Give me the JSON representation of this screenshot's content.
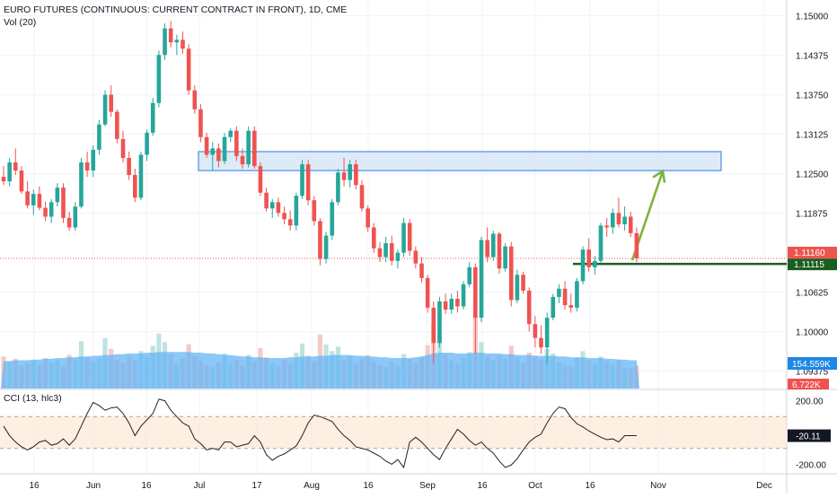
{
  "header": {
    "symbol": "EURO FUTURES (CONTINUOUS: CURRENT CONTRACT IN FRONT), 1D, CME",
    "volume_label": "Vol (20)"
  },
  "colors": {
    "up": "#26a69a",
    "down": "#ef5350",
    "volume_up": "#bfe3e0",
    "volume_down": "#f7c8c8",
    "volume_ma": "#64b5f6",
    "zone_fill": "#d4e6f8",
    "zone_stroke": "#4a90d9",
    "support_line": "#1b5e20",
    "arrow": "#7cb342",
    "cci_line": "#222222",
    "cci_band": "#fbe4cf",
    "grid": "#f0f3fa"
  },
  "chart_data": [
    {
      "type": "candlestick",
      "title": "EURO FUTURES (CONTINUOUS: CURRENT CONTRACT IN FRONT), 1D, CME",
      "y_axis": {
        "ticks": [
          "1.15000",
          "1.14375",
          "1.13750",
          "1.13125",
          "1.12500",
          "1.11875",
          "1.10625",
          "1.10000",
          "1.09375"
        ],
        "range": [
          1.091,
          1.1525
        ],
        "current_price": "1.11160",
        "current_price_value": 1.1116,
        "support_price": "1.11115",
        "support_price_value": 1.11115
      },
      "x_axis": {
        "ticks": [
          "16",
          "Jun",
          "16",
          "Jul",
          "17",
          "Aug",
          "16",
          "Sep",
          "16",
          "Oct",
          "16",
          "Nov",
          "Dec"
        ]
      },
      "candles_ohlc": [
        [
          1.1245,
          1.1262,
          1.1232,
          1.1238
        ],
        [
          1.1238,
          1.1275,
          1.123,
          1.1268
        ],
        [
          1.1268,
          1.129,
          1.1248,
          1.1255
        ],
        [
          1.1255,
          1.1262,
          1.1218,
          1.1222
        ],
        [
          1.1222,
          1.1238,
          1.1195,
          1.12
        ],
        [
          1.12,
          1.1225,
          1.1185,
          1.1218
        ],
        [
          1.1218,
          1.123,
          1.1192,
          1.1196
        ],
        [
          1.1196,
          1.1206,
          1.1175,
          1.1182
        ],
        [
          1.1182,
          1.121,
          1.1172,
          1.1205
        ],
        [
          1.1205,
          1.1235,
          1.1198,
          1.1228
        ],
        [
          1.1228,
          1.1235,
          1.1172,
          1.118
        ],
        [
          1.118,
          1.119,
          1.116,
          1.1165
        ],
        [
          1.1165,
          1.1205,
          1.116,
          1.1198
        ],
        [
          1.1198,
          1.1275,
          1.1195,
          1.1268
        ],
        [
          1.1268,
          1.1285,
          1.1245,
          1.1255
        ],
        [
          1.1255,
          1.1295,
          1.1245,
          1.1288
        ],
        [
          1.1288,
          1.1335,
          1.128,
          1.1328
        ],
        [
          1.1328,
          1.1382,
          1.1325,
          1.1375
        ],
        [
          1.1375,
          1.139,
          1.134,
          1.1348
        ],
        [
          1.1348,
          1.1352,
          1.1298,
          1.1305
        ],
        [
          1.1305,
          1.1318,
          1.1268,
          1.1275
        ],
        [
          1.1275,
          1.1285,
          1.124,
          1.1248
        ],
        [
          1.1248,
          1.1258,
          1.1205,
          1.1212
        ],
        [
          1.1212,
          1.1285,
          1.1208,
          1.128
        ],
        [
          1.128,
          1.132,
          1.127,
          1.1315
        ],
        [
          1.1315,
          1.137,
          1.131,
          1.1362
        ],
        [
          1.1362,
          1.1445,
          1.1355,
          1.1438
        ],
        [
          1.1438,
          1.1488,
          1.143,
          1.148
        ],
        [
          1.148,
          1.1492,
          1.145,
          1.1458
        ],
        [
          1.1458,
          1.147,
          1.1438,
          1.1462
        ],
        [
          1.1462,
          1.1475,
          1.144,
          1.1448
        ],
        [
          1.1448,
          1.1455,
          1.1375,
          1.1382
        ],
        [
          1.1382,
          1.139,
          1.1345,
          1.1352
        ],
        [
          1.1352,
          1.136,
          1.13,
          1.1308
        ],
        [
          1.1308,
          1.1315,
          1.1275,
          1.128
        ],
        [
          1.128,
          1.13,
          1.1255,
          1.129
        ],
        [
          1.129,
          1.1298,
          1.126,
          1.127
        ],
        [
          1.127,
          1.1315,
          1.1265,
          1.1308
        ],
        [
          1.1308,
          1.1322,
          1.13,
          1.1318
        ],
        [
          1.1318,
          1.1325,
          1.127,
          1.1278
        ],
        [
          1.1278,
          1.129,
          1.1258,
          1.1265
        ],
        [
          1.1265,
          1.1325,
          1.126,
          1.1318
        ],
        [
          1.1318,
          1.1325,
          1.1258,
          1.1262
        ],
        [
          1.1262,
          1.1268,
          1.1215,
          1.122
        ],
        [
          1.122,
          1.1228,
          1.119,
          1.1195
        ],
        [
          1.1195,
          1.121,
          1.118,
          1.1205
        ],
        [
          1.1205,
          1.1212,
          1.1182,
          1.1188
        ],
        [
          1.1188,
          1.1198,
          1.117,
          1.1178
        ],
        [
          1.1178,
          1.1192,
          1.116,
          1.1168
        ],
        [
          1.1168,
          1.122,
          1.116,
          1.1215
        ],
        [
          1.1215,
          1.1272,
          1.121,
          1.1265
        ],
        [
          1.1265,
          1.1272,
          1.12,
          1.1208
        ],
        [
          1.1208,
          1.1215,
          1.1168,
          1.1175
        ],
        [
          1.1175,
          1.118,
          1.1105,
          1.1115
        ],
        [
          1.1115,
          1.1158,
          1.1108,
          1.1152
        ],
        [
          1.1152,
          1.121,
          1.1145,
          1.1205
        ],
        [
          1.1205,
          1.1258,
          1.12,
          1.1252
        ],
        [
          1.1252,
          1.1275,
          1.123,
          1.124
        ],
        [
          1.124,
          1.1272,
          1.1228,
          1.1265
        ],
        [
          1.1265,
          1.1272,
          1.1225,
          1.1232
        ],
        [
          1.1232,
          1.124,
          1.119,
          1.1195
        ],
        [
          1.1195,
          1.12,
          1.1158,
          1.1165
        ],
        [
          1.1165,
          1.1172,
          1.1125,
          1.1132
        ],
        [
          1.1132,
          1.1142,
          1.111,
          1.1118
        ],
        [
          1.1118,
          1.115,
          1.111,
          1.114
        ],
        [
          1.114,
          1.1152,
          1.1105,
          1.1112
        ],
        [
          1.1112,
          1.113,
          1.11,
          1.1125
        ],
        [
          1.1125,
          1.118,
          1.1118,
          1.1172
        ],
        [
          1.1172,
          1.1178,
          1.112,
          1.1128
        ],
        [
          1.1128,
          1.1135,
          1.11,
          1.1108
        ],
        [
          1.1108,
          1.1118,
          1.1078,
          1.1085
        ],
        [
          1.1085,
          1.109,
          1.103,
          1.1038
        ],
        [
          1.1038,
          1.1048,
          1.095,
          1.0982
        ],
        [
          1.0982,
          1.1055,
          1.0975,
          1.1048
        ],
        [
          1.1048,
          1.106,
          1.1028,
          1.1035
        ],
        [
          1.1035,
          1.106,
          1.1028,
          1.1052
        ],
        [
          1.1052,
          1.1065,
          1.103,
          1.104
        ],
        [
          1.104,
          1.108,
          1.1035,
          1.1075
        ],
        [
          1.1075,
          1.111,
          1.107,
          1.1102
        ],
        [
          1.1102,
          1.1108,
          1.0965,
          1.1022
        ],
        [
          1.1022,
          1.115,
          1.1015,
          1.1145
        ],
        [
          1.1145,
          1.1165,
          1.111,
          1.1118
        ],
        [
          1.1118,
          1.116,
          1.1112,
          1.1155
        ],
        [
          1.1155,
          1.1158,
          1.1092,
          1.11
        ],
        [
          1.11,
          1.114,
          1.1095,
          1.1135
        ],
        [
          1.1135,
          1.1142,
          1.104,
          1.105
        ],
        [
          1.105,
          1.1098,
          1.1045,
          1.109
        ],
        [
          1.109,
          1.1095,
          1.106,
          1.1065
        ],
        [
          1.1065,
          1.107,
          1.1,
          1.1012
        ],
        [
          1.1012,
          1.1025,
          1.0975,
          1.099
        ],
        [
          1.099,
          1.101,
          1.0965,
          1.0975
        ],
        [
          1.0975,
          1.103,
          1.095,
          1.1022
        ],
        [
          1.1022,
          1.106,
          1.1018,
          1.1055
        ],
        [
          1.1055,
          1.1075,
          1.1045,
          1.1068
        ],
        [
          1.1068,
          1.108,
          1.1035,
          1.1042
        ],
        [
          1.1042,
          1.106,
          1.103,
          1.1038
        ],
        [
          1.1038,
          1.1085,
          1.1032,
          1.108
        ],
        [
          1.108,
          1.1135,
          1.1075,
          1.113
        ],
        [
          1.113,
          1.1148,
          1.1095,
          1.1102
        ],
        [
          1.1102,
          1.112,
          1.109,
          1.1112
        ],
        [
          1.1112,
          1.1172,
          1.1108,
          1.1168
        ],
        [
          1.1168,
          1.118,
          1.115,
          1.1165
        ],
        [
          1.1165,
          1.1195,
          1.1155,
          1.1188
        ],
        [
          1.1188,
          1.1212,
          1.1165,
          1.117
        ],
        [
          1.117,
          1.1198,
          1.116,
          1.1182
        ],
        [
          1.1182,
          1.119,
          1.115,
          1.1156
        ],
        [
          1.1156,
          1.1165,
          1.111,
          1.1116
        ]
      ],
      "volumes": [
        0.42,
        0.35,
        0.39,
        0.3,
        0.33,
        0.36,
        0.31,
        0.4,
        0.34,
        0.37,
        0.29,
        0.44,
        0.38,
        0.62,
        0.41,
        0.35,
        0.39,
        0.66,
        0.52,
        0.38,
        0.34,
        0.43,
        0.37,
        0.49,
        0.41,
        0.56,
        0.72,
        0.61,
        0.45,
        0.33,
        0.39,
        0.58,
        0.42,
        0.37,
        0.31,
        0.28,
        0.34,
        0.46,
        0.32,
        0.38,
        0.3,
        0.44,
        0.36,
        0.53,
        0.41,
        0.34,
        0.29,
        0.38,
        0.33,
        0.47,
        0.59,
        0.43,
        0.36,
        0.71,
        0.58,
        0.49,
        0.55,
        0.37,
        0.42,
        0.33,
        0.39,
        0.44,
        0.36,
        0.31,
        0.28,
        0.35,
        0.3,
        0.45,
        0.38,
        0.34,
        0.41,
        0.57,
        0.85,
        0.69,
        0.45,
        0.37,
        0.32,
        0.4,
        0.48,
        0.93,
        0.61,
        0.42,
        0.37,
        0.44,
        0.39,
        0.56,
        0.41,
        0.34,
        0.47,
        0.43,
        0.38,
        0.52,
        0.46,
        0.35,
        0.31,
        0.29,
        0.4,
        0.49,
        0.37,
        0.33,
        0.42,
        0.36,
        0.31,
        0.38,
        0.28,
        0.26,
        0.3
      ],
      "volume_ma": [
        0.36,
        0.36,
        0.37,
        0.37,
        0.37,
        0.38,
        0.38,
        0.39,
        0.39,
        0.4,
        0.4,
        0.41,
        0.41,
        0.42,
        0.42,
        0.43,
        0.43,
        0.44,
        0.44,
        0.45,
        0.45,
        0.46,
        0.46,
        0.46,
        0.47,
        0.47,
        0.48,
        0.48,
        0.48,
        0.48,
        0.48,
        0.48,
        0.47,
        0.47,
        0.46,
        0.46,
        0.45,
        0.44,
        0.44,
        0.43,
        0.42,
        0.42,
        0.41,
        0.41,
        0.4,
        0.4,
        0.4,
        0.4,
        0.41,
        0.41,
        0.42,
        0.42,
        0.42,
        0.43,
        0.43,
        0.44,
        0.44,
        0.44,
        0.44,
        0.43,
        0.43,
        0.42,
        0.42,
        0.41,
        0.41,
        0.4,
        0.4,
        0.4,
        0.4,
        0.41,
        0.42,
        0.44,
        0.46,
        0.47,
        0.47,
        0.47,
        0.46,
        0.46,
        0.46,
        0.47,
        0.47,
        0.46,
        0.46,
        0.46,
        0.45,
        0.45,
        0.44,
        0.44,
        0.44,
        0.43,
        0.43,
        0.43,
        0.43,
        0.42,
        0.42,
        0.41,
        0.41,
        0.41,
        0.4,
        0.4,
        0.4,
        0.39,
        0.39,
        0.38,
        0.38,
        0.37,
        0.37
      ],
      "volume_ma_label": "154.559K",
      "volume_last_label": "6.722K",
      "drawings": {
        "resistance_zone": [
          1.1255,
          1.1285
        ],
        "support_level": 1.11115,
        "target_arrow": {
          "to_price": 1.125
        }
      }
    },
    {
      "type": "line",
      "title": "CCI (13, hlc3)",
      "y_axis": {
        "ticks": [
          "200.00",
          "-200.00"
        ],
        "range": [
          -260,
          260
        ]
      },
      "band": [
        -100,
        100
      ],
      "current_value": "-20.11",
      "values": [
        40,
        -20,
        -60,
        -90,
        -110,
        -90,
        -60,
        -50,
        -80,
        -70,
        -40,
        -80,
        -40,
        40,
        120,
        190,
        170,
        140,
        155,
        160,
        120,
        60,
        -20,
        40,
        80,
        120,
        210,
        200,
        140,
        100,
        60,
        40,
        -40,
        -70,
        -110,
        -100,
        -110,
        -60,
        -60,
        -90,
        -80,
        -70,
        -20,
        -60,
        -140,
        -175,
        -150,
        -135,
        -110,
        -85,
        -20,
        60,
        110,
        100,
        85,
        70,
        20,
        -20,
        -50,
        -90,
        -100,
        -110,
        -130,
        -150,
        -180,
        -200,
        -170,
        -220,
        -60,
        -30,
        -60,
        -100,
        -140,
        -170,
        -100,
        -40,
        20,
        -10,
        -50,
        -80,
        -60,
        -100,
        -130,
        -180,
        -220,
        -205,
        -165,
        -110,
        -60,
        -30,
        -10,
        60,
        120,
        160,
        150,
        95,
        55,
        35,
        10,
        -10,
        -30,
        -45,
        -40,
        -60,
        -20,
        -20,
        -20
      ]
    }
  ]
}
